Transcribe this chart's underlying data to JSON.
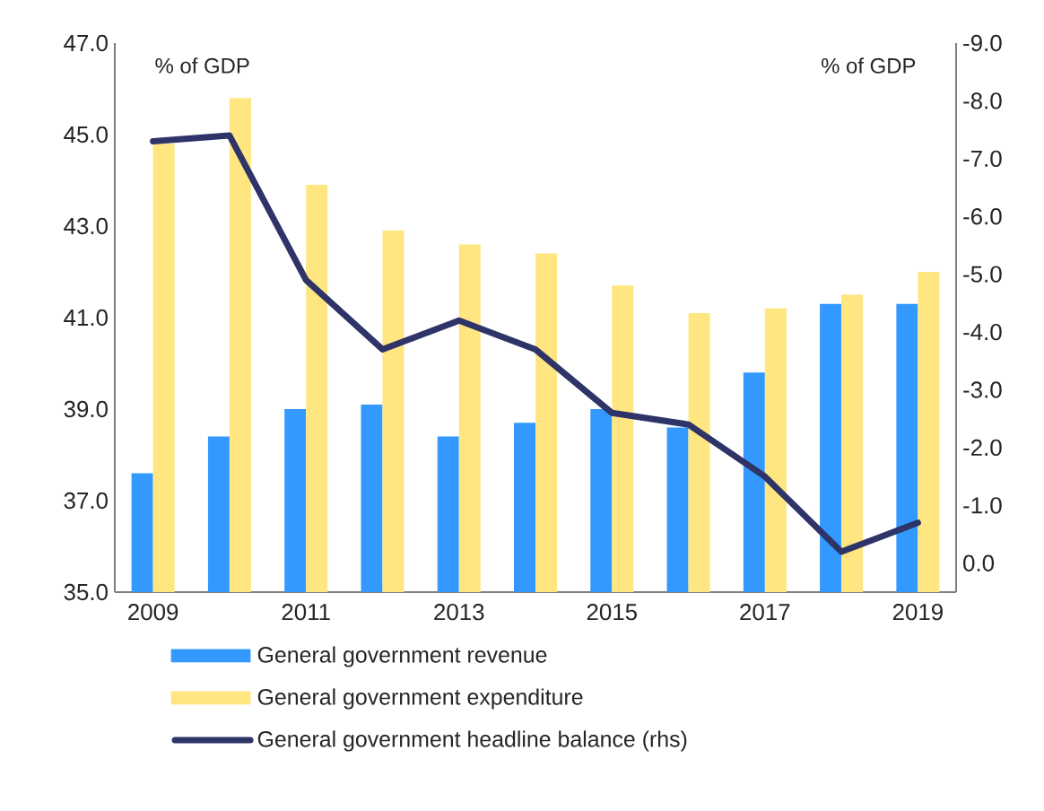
{
  "chart_data": {
    "type": "bar",
    "categories": [
      "2009",
      null,
      "2011",
      null,
      "2013",
      null,
      "2015",
      null,
      "2017",
      null,
      "2019"
    ],
    "ylabel": "% of GDP",
    "y2label": "% of GDP",
    "ylim": [
      35,
      47
    ],
    "yticks": [
      {
        "value": 35,
        "label": "35.0"
      },
      {
        "value": 37,
        "label": "37.0"
      },
      {
        "value": 39,
        "label": "39.0"
      },
      {
        "value": 41,
        "label": "41.0"
      },
      {
        "value": 43,
        "label": "43.0"
      },
      {
        "value": 45,
        "label": "45.0"
      },
      {
        "value": 47,
        "label": "47.0"
      }
    ],
    "y2lim": [
      0.5,
      -9
    ],
    "y2ticks": [
      {
        "value": 0,
        "label": "0.0"
      },
      {
        "value": -1,
        "label": "-1.0"
      },
      {
        "value": -2,
        "label": "-2.0"
      },
      {
        "value": -3,
        "label": "-3.0"
      },
      {
        "value": -4,
        "label": "-4.0"
      },
      {
        "value": -5,
        "label": "-5.0"
      },
      {
        "value": -6,
        "label": "-6.0"
      },
      {
        "value": -7,
        "label": "-7.0"
      },
      {
        "value": -8,
        "label": "-8.0"
      },
      {
        "value": -9,
        "label": "-9.0"
      }
    ],
    "legend": "bottom",
    "grid": false,
    "series": [
      {
        "name": "General government revenue",
        "color": "#3399ff",
        "values": [
          37.6,
          38.4,
          39.0,
          39.1,
          38.4,
          38.7,
          39.0,
          38.6,
          39.8,
          41.3,
          41.3
        ]
      },
      {
        "name": "General government expenditure",
        "color": "#ffe680",
        "values": [
          44.8,
          45.8,
          43.9,
          42.9,
          42.6,
          42.4,
          41.7,
          41.1,
          41.2,
          41.5,
          42.0
        ]
      },
      {
        "name": "General government headline balance (rhs)",
        "type": "line",
        "axis": "y2",
        "color": "#2e3368",
        "values": [
          -7.3,
          -7.4,
          -4.9,
          -3.7,
          -4.2,
          -3.7,
          -2.6,
          -2.4,
          -1.5,
          -0.2,
          -0.7
        ]
      }
    ]
  }
}
